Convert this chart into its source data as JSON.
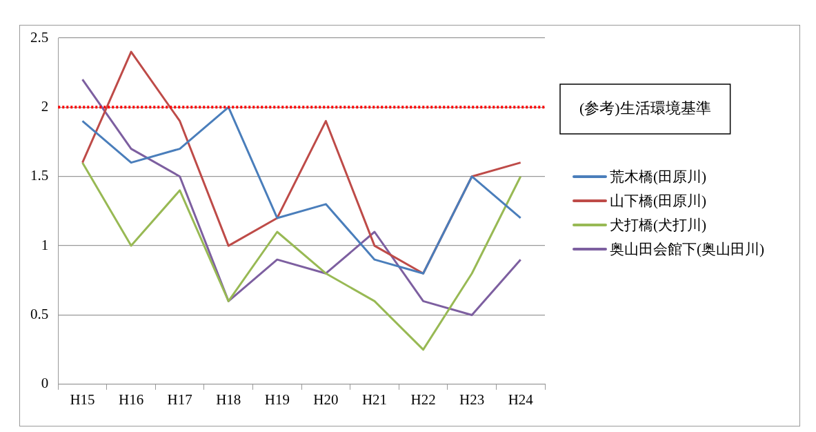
{
  "chart_data": {
    "type": "line",
    "categories": [
      "H15",
      "H16",
      "H17",
      "H18",
      "H19",
      "H20",
      "H21",
      "H22",
      "H23",
      "H24"
    ],
    "series": [
      {
        "name": "荒木橋(田原川)",
        "color": "#4a7ebb",
        "values": [
          1.9,
          1.6,
          1.7,
          2.0,
          1.2,
          1.3,
          0.9,
          0.8,
          1.5,
          1.2
        ]
      },
      {
        "name": "山下橋(田原川)",
        "color": "#be4b48",
        "values": [
          1.6,
          2.4,
          1.9,
          1.0,
          1.2,
          1.9,
          1.0,
          0.8,
          1.5,
          1.6
        ]
      },
      {
        "name": "犬打橋(犬打川)",
        "color": "#98b954",
        "values": [
          1.6,
          1.0,
          1.4,
          0.6,
          1.1,
          0.8,
          0.6,
          0.25,
          0.8,
          1.5
        ]
      },
      {
        "name": "奥山田会館下(奥山田川)",
        "color": "#7d5fa0",
        "values": [
          2.2,
          1.7,
          1.5,
          0.6,
          0.9,
          0.8,
          1.1,
          0.6,
          0.5,
          0.9
        ]
      }
    ],
    "ylim": [
      0,
      2.5
    ],
    "yticks": [
      0,
      0.5,
      1,
      1.5,
      2,
      2.5
    ],
    "ref_lines": [
      {
        "axis": "y",
        "value": 2,
        "label": "(参考)生活環境基準",
        "color": "#ff0000",
        "line_style": "dotted"
      }
    ],
    "grid": "y",
    "legend": "right",
    "marker": "none",
    "line_style": "solid"
  }
}
